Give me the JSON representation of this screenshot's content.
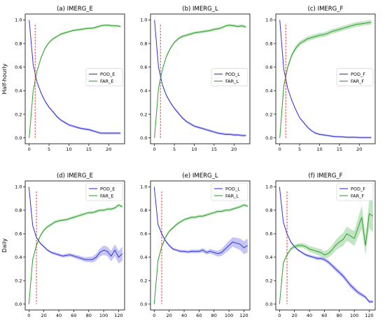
{
  "figure": {
    "row_labels": [
      "Half-hourly",
      "Daily"
    ],
    "colors": {
      "pod": "#3333dd",
      "far": "#2ca02c",
      "ref_line": "#dd2222"
    }
  },
  "chart_data": [
    {
      "type": "line",
      "title": "(a) IMERG_E",
      "xlim": [
        -1,
        24
      ],
      "ylim": [
        -0.05,
        1.05
      ],
      "xticks": [
        0,
        5,
        10,
        15,
        20
      ],
      "yticks": [
        0.0,
        0.2,
        0.4,
        0.6,
        0.8,
        1.0
      ],
      "ref_line_x": 1.5,
      "legend_position": "center-right",
      "series": [
        {
          "name": "POD_E",
          "x": [
            0,
            1,
            2,
            3,
            4,
            5,
            6,
            7,
            8,
            9,
            10,
            11,
            12,
            13,
            14,
            15,
            16,
            17,
            18,
            19,
            20,
            21,
            22,
            23
          ],
          "values": [
            1.0,
            0.62,
            0.47,
            0.38,
            0.31,
            0.26,
            0.22,
            0.18,
            0.15,
            0.13,
            0.11,
            0.1,
            0.09,
            0.08,
            0.075,
            0.07,
            0.06,
            0.05,
            0.04,
            0.04,
            0.04,
            0.04,
            0.04,
            0.04
          ],
          "band": 0.01
        },
        {
          "name": "FAR_E",
          "x": [
            0,
            1,
            2,
            3,
            4,
            5,
            6,
            7,
            8,
            9,
            10,
            11,
            12,
            13,
            14,
            15,
            16,
            17,
            18,
            19,
            20,
            21,
            22,
            23
          ],
          "values": [
            0.0,
            0.4,
            0.57,
            0.68,
            0.76,
            0.81,
            0.84,
            0.86,
            0.88,
            0.89,
            0.9,
            0.91,
            0.915,
            0.92,
            0.925,
            0.93,
            0.93,
            0.94,
            0.95,
            0.955,
            0.955,
            0.95,
            0.95,
            0.945
          ],
          "band": 0.01
        }
      ]
    },
    {
      "type": "line",
      "title": "(b) IMERG_L",
      "xlim": [
        -1,
        24
      ],
      "ylim": [
        -0.05,
        1.05
      ],
      "xticks": [
        0,
        5,
        10,
        15,
        20
      ],
      "yticks": [
        0.0,
        0.2,
        0.4,
        0.6,
        0.8,
        1.0
      ],
      "ref_line_x": 1.5,
      "legend_position": "center-right",
      "series": [
        {
          "name": "POD_L",
          "x": [
            0,
            1,
            2,
            3,
            4,
            5,
            6,
            7,
            8,
            9,
            10,
            11,
            12,
            13,
            14,
            15,
            16,
            17,
            18,
            19,
            20,
            21,
            22,
            23
          ],
          "values": [
            1.0,
            0.6,
            0.45,
            0.36,
            0.3,
            0.25,
            0.21,
            0.17,
            0.14,
            0.12,
            0.1,
            0.09,
            0.08,
            0.07,
            0.06,
            0.05,
            0.04,
            0.035,
            0.03,
            0.03,
            0.025,
            0.025,
            0.02,
            0.02
          ],
          "band": 0.01
        },
        {
          "name": "FAR_L",
          "x": [
            0,
            1,
            2,
            3,
            4,
            5,
            6,
            7,
            8,
            9,
            10,
            11,
            12,
            13,
            14,
            15,
            16,
            17,
            18,
            19,
            20,
            21,
            22,
            23
          ],
          "values": [
            0.0,
            0.42,
            0.58,
            0.69,
            0.76,
            0.81,
            0.84,
            0.86,
            0.87,
            0.88,
            0.89,
            0.895,
            0.9,
            0.905,
            0.91,
            0.92,
            0.925,
            0.935,
            0.95,
            0.955,
            0.95,
            0.945,
            0.95,
            0.94
          ],
          "band": 0.012
        }
      ]
    },
    {
      "type": "line",
      "title": "(c) IMERG_F",
      "xlim": [
        -1,
        24
      ],
      "ylim": [
        -0.05,
        1.05
      ],
      "xticks": [
        0,
        5,
        10,
        15,
        20
      ],
      "yticks": [
        0.0,
        0.2,
        0.4,
        0.6,
        0.8,
        1.0
      ],
      "ref_line_x": 1.5,
      "legend_position": "center-right",
      "series": [
        {
          "name": "POD_F",
          "x": [
            0,
            1,
            2,
            3,
            4,
            5,
            6,
            7,
            8,
            9,
            10,
            11,
            12,
            13,
            14,
            15,
            16,
            17,
            18,
            19,
            20,
            21,
            22,
            23
          ],
          "values": [
            1.0,
            0.58,
            0.42,
            0.32,
            0.24,
            0.17,
            0.13,
            0.09,
            0.06,
            0.04,
            0.03,
            0.025,
            0.02,
            0.015,
            0.01,
            0.01,
            0.008,
            0.005,
            0.005,
            0.005,
            0.003,
            0.003,
            0.003,
            0.003
          ],
          "band": 0.008
        },
        {
          "name": "FAR_F",
          "x": [
            0,
            1,
            2,
            3,
            4,
            5,
            6,
            7,
            8,
            9,
            10,
            11,
            12,
            13,
            14,
            15,
            16,
            17,
            18,
            19,
            20,
            21,
            22,
            23
          ],
          "values": [
            0.0,
            0.44,
            0.6,
            0.7,
            0.76,
            0.8,
            0.82,
            0.84,
            0.85,
            0.86,
            0.87,
            0.875,
            0.885,
            0.9,
            0.91,
            0.92,
            0.93,
            0.94,
            0.95,
            0.96,
            0.965,
            0.97,
            0.975,
            0.98
          ],
          "band": 0.02
        }
      ]
    },
    {
      "type": "line",
      "title": "(d) IMERG_E",
      "xlim": [
        -5,
        128
      ],
      "ylim": [
        -0.05,
        1.05
      ],
      "xticks": [
        0,
        20,
        40,
        60,
        80,
        100,
        120
      ],
      "yticks": [
        0.0,
        0.2,
        0.4,
        0.6,
        0.8,
        1.0
      ],
      "ref_line_x": 10,
      "legend_position": "top-right",
      "series": [
        {
          "name": "POD_E",
          "x": [
            0,
            5,
            10,
            15,
            20,
            25,
            30,
            35,
            40,
            45,
            50,
            55,
            60,
            65,
            70,
            75,
            80,
            85,
            90,
            95,
            100,
            105,
            110,
            115,
            120,
            125
          ],
          "values": [
            1.0,
            0.67,
            0.57,
            0.52,
            0.49,
            0.46,
            0.44,
            0.43,
            0.42,
            0.41,
            0.415,
            0.42,
            0.41,
            0.4,
            0.39,
            0.38,
            0.38,
            0.38,
            0.4,
            0.44,
            0.46,
            0.45,
            0.41,
            0.46,
            0.4,
            0.43
          ],
          "band": [
            0.0,
            0.01,
            0.01,
            0.01,
            0.01,
            0.01,
            0.01,
            0.012,
            0.012,
            0.012,
            0.015,
            0.015,
            0.015,
            0.018,
            0.018,
            0.02,
            0.022,
            0.025,
            0.03,
            0.035,
            0.04,
            0.04,
            0.045,
            0.05,
            0.055,
            0.06
          ]
        },
        {
          "name": "FAR_E",
          "x": [
            0,
            5,
            10,
            15,
            20,
            25,
            30,
            35,
            40,
            45,
            50,
            55,
            60,
            65,
            70,
            75,
            80,
            85,
            90,
            95,
            100,
            105,
            110,
            115,
            120,
            125
          ],
          "values": [
            0.0,
            0.38,
            0.5,
            0.58,
            0.63,
            0.66,
            0.68,
            0.7,
            0.71,
            0.715,
            0.72,
            0.73,
            0.74,
            0.75,
            0.76,
            0.77,
            0.78,
            0.78,
            0.79,
            0.8,
            0.8,
            0.81,
            0.81,
            0.82,
            0.845,
            0.83
          ],
          "band": 0.012
        }
      ]
    },
    {
      "type": "line",
      "title": "(e) IMERG_L",
      "xlim": [
        -5,
        128
      ],
      "ylim": [
        -0.05,
        1.05
      ],
      "xticks": [
        0,
        20,
        40,
        60,
        80,
        100,
        120
      ],
      "yticks": [
        0.0,
        0.2,
        0.4,
        0.6,
        0.8,
        1.0
      ],
      "ref_line_x": 10,
      "legend_position": "top-right",
      "series": [
        {
          "name": "POD_L",
          "x": [
            0,
            5,
            10,
            15,
            20,
            25,
            30,
            35,
            40,
            45,
            50,
            55,
            60,
            65,
            70,
            75,
            80,
            85,
            90,
            95,
            100,
            105,
            110,
            115,
            120,
            125
          ],
          "values": [
            1.0,
            0.68,
            0.6,
            0.54,
            0.5,
            0.47,
            0.46,
            0.45,
            0.45,
            0.445,
            0.45,
            0.45,
            0.45,
            0.46,
            0.44,
            0.45,
            0.44,
            0.43,
            0.44,
            0.47,
            0.5,
            0.53,
            0.52,
            0.51,
            0.48,
            0.5
          ],
          "band": [
            0.0,
            0.01,
            0.01,
            0.01,
            0.01,
            0.01,
            0.01,
            0.012,
            0.012,
            0.012,
            0.015,
            0.015,
            0.015,
            0.018,
            0.018,
            0.02,
            0.022,
            0.025,
            0.03,
            0.035,
            0.04,
            0.04,
            0.045,
            0.05,
            0.055,
            0.06
          ]
        },
        {
          "name": "FAR_L",
          "x": [
            0,
            5,
            10,
            15,
            20,
            25,
            30,
            35,
            40,
            45,
            50,
            55,
            60,
            65,
            70,
            75,
            80,
            85,
            90,
            95,
            100,
            105,
            110,
            115,
            120,
            125
          ],
          "values": [
            0.0,
            0.37,
            0.49,
            0.57,
            0.62,
            0.65,
            0.68,
            0.7,
            0.72,
            0.73,
            0.74,
            0.74,
            0.75,
            0.75,
            0.76,
            0.77,
            0.78,
            0.79,
            0.79,
            0.8,
            0.8,
            0.81,
            0.82,
            0.83,
            0.845,
            0.835
          ],
          "band": 0.012
        }
      ]
    },
    {
      "type": "line",
      "title": "(f) IMERG_F",
      "xlim": [
        -5,
        128
      ],
      "ylim": [
        -0.05,
        1.05
      ],
      "xticks": [
        0,
        20,
        40,
        60,
        80,
        100,
        120
      ],
      "yticks": [
        0.0,
        0.2,
        0.4,
        0.6,
        0.8,
        1.0
      ],
      "ref_line_x": 10,
      "legend_position": "top-right",
      "series": [
        {
          "name": "POD_F",
          "x": [
            0,
            5,
            10,
            15,
            20,
            25,
            30,
            35,
            40,
            45,
            50,
            55,
            60,
            65,
            70,
            75,
            80,
            85,
            90,
            95,
            100,
            105,
            110,
            115,
            120,
            125
          ],
          "values": [
            1.0,
            0.7,
            0.6,
            0.53,
            0.49,
            0.46,
            0.44,
            0.42,
            0.41,
            0.4,
            0.39,
            0.39,
            0.38,
            0.36,
            0.33,
            0.3,
            0.27,
            0.24,
            0.2,
            0.16,
            0.13,
            0.1,
            0.08,
            0.06,
            0.02,
            0.02
          ],
          "band": [
            0.0,
            0.01,
            0.01,
            0.01,
            0.01,
            0.01,
            0.01,
            0.012,
            0.012,
            0.012,
            0.015,
            0.015,
            0.015,
            0.018,
            0.018,
            0.02,
            0.02,
            0.02,
            0.02,
            0.02,
            0.02,
            0.018,
            0.016,
            0.015,
            0.013,
            0.012
          ]
        },
        {
          "name": "FAR_F",
          "x": [
            0,
            5,
            10,
            15,
            20,
            25,
            30,
            35,
            40,
            45,
            50,
            55,
            60,
            65,
            70,
            75,
            80,
            85,
            90,
            95,
            100,
            105,
            110,
            115,
            120,
            125
          ],
          "values": [
            0.0,
            0.35,
            0.42,
            0.47,
            0.49,
            0.5,
            0.5,
            0.49,
            0.47,
            0.46,
            0.45,
            0.44,
            0.42,
            0.43,
            0.46,
            0.5,
            0.53,
            0.55,
            0.6,
            0.58,
            0.56,
            0.65,
            0.74,
            0.5,
            0.77,
            0.75
          ],
          "band": [
            0.0,
            0.01,
            0.012,
            0.014,
            0.016,
            0.018,
            0.02,
            0.022,
            0.024,
            0.026,
            0.028,
            0.03,
            0.032,
            0.035,
            0.04,
            0.045,
            0.05,
            0.055,
            0.06,
            0.06,
            0.065,
            0.08,
            0.1,
            0.08,
            0.12,
            0.14
          ]
        }
      ]
    }
  ]
}
